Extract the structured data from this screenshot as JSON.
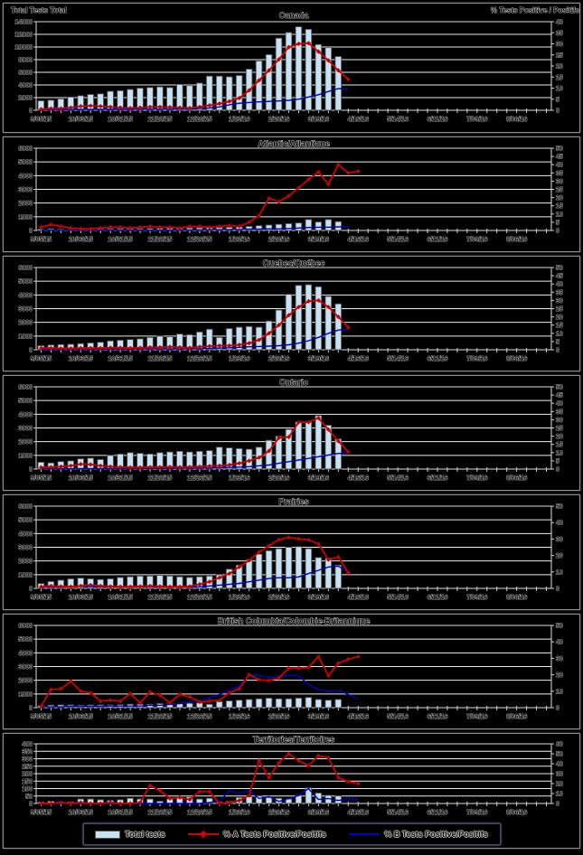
{
  "page": {
    "background": "#000000"
  },
  "header": {
    "left_axis_title": "Total Tests Total",
    "right_axis_title": "% Tests Positive / Positifs"
  },
  "colors": {
    "bar_fill": "#c9e2f3",
    "bar_stroke": "#4a4a4a",
    "series_a": "#cf0000",
    "series_b": "#0000c8",
    "gridline": "#ededed",
    "frame": "#dedede",
    "tick": "#cfcfcf"
  },
  "legend": {
    "items": [
      {
        "label": "Total tests",
        "type": "bar"
      },
      {
        "label": "% A Tests Positive/Positifs",
        "type": "line-diamond"
      },
      {
        "label": "% B Tests Positive/Positifs",
        "type": "line"
      }
    ]
  },
  "x_axis": {
    "labels": [
      "9/05/15",
      "10/03/15",
      "10/31/15",
      "11/28/15",
      "12/26/15",
      "1/23/16",
      "2/20/16",
      "3/19/16",
      "4/16/16",
      "5/14/16",
      "6/11/16",
      "7/09/16",
      "8/06/16"
    ],
    "weeks_total": 52,
    "label_every_weeks": 4
  },
  "chart_data": [
    {
      "type": "bar",
      "title": "Canada",
      "left_axis": {
        "min": 0,
        "max": 14000,
        "step": 2000
      },
      "right_axis": {
        "min": 0,
        "max": 40,
        "step": 5
      },
      "series": [
        {
          "name": "Total tests",
          "kind": "bar",
          "axis": "left",
          "values": [
            1500,
            1600,
            1800,
            2100,
            2300,
            2500,
            2600,
            3000,
            3100,
            3300,
            3500,
            3600,
            3700,
            3600,
            4100,
            3900,
            4300,
            5400,
            5400,
            5300,
            5500,
            6500,
            7800,
            8800,
            11400,
            12300,
            13200,
            12800,
            10400,
            9900,
            8500
          ]
        },
        {
          "name": "% A Tests Positive/Positifs",
          "kind": "line",
          "marker": "diamond",
          "axis": "right",
          "values": [
            0.5,
            0.8,
            0.8,
            1.2,
            1.8,
            2.0,
            1.8,
            1.5,
            1.2,
            1.0,
            1.2,
            1.5,
            1.5,
            1.4,
            1.2,
            1.0,
            1.5,
            2.2,
            3.0,
            4.0,
            5.5,
            9.0,
            13.5,
            18.0,
            23.0,
            28.5,
            30.0,
            30.3,
            26.5,
            22.5,
            18.0,
            14.0
          ]
        },
        {
          "name": "% B Tests Positive/Positifs",
          "kind": "line",
          "axis": "right",
          "values": [
            0.3,
            0.3,
            0.3,
            0.3,
            0.4,
            0.4,
            0.4,
            0.4,
            0.4,
            0.4,
            0.5,
            0.5,
            0.5,
            0.5,
            0.6,
            0.6,
            0.8,
            1.0,
            1.5,
            2.5,
            3.2,
            3.5,
            3.8,
            4.0,
            4.2,
            4.5,
            5.0,
            6.0,
            7.0,
            8.5,
            9.8,
            9.4
          ]
        }
      ]
    },
    {
      "type": "bar",
      "title": "Atlantic/Atlantique",
      "left_axis": {
        "min": 0,
        "max": 6000,
        "step": 1000
      },
      "right_axis": {
        "min": 0,
        "max": 50,
        "step": 5
      },
      "series": [
        {
          "name": "Total tests",
          "kind": "bar",
          "axis": "left",
          "values": [
            100,
            120,
            100,
            90,
            100,
            110,
            120,
            130,
            140,
            150,
            140,
            150,
            160,
            170,
            180,
            190,
            200,
            220,
            230,
            240,
            260,
            300,
            350,
            400,
            450,
            500,
            550,
            800,
            620,
            800,
            650
          ]
        },
        {
          "name": "% A Tests Positive/Positifs",
          "kind": "line",
          "marker": "diamond",
          "axis": "right",
          "values": [
            2,
            3.5,
            2.5,
            1.5,
            1,
            1,
            1.5,
            2,
            2,
            1.5,
            2,
            2.5,
            2,
            2,
            1.5,
            2.5,
            2.5,
            2,
            2.5,
            3,
            2.5,
            5,
            9,
            19.5,
            17.5,
            21,
            26,
            31,
            35.5,
            28,
            40,
            35,
            36
          ]
        },
        {
          "name": "% B Tests Positive/Positifs",
          "kind": "line",
          "axis": "right",
          "values": [
            0.2,
            0.2,
            0.2,
            0.2,
            0.2,
            0.2,
            0.2,
            0.3,
            0.3,
            0.3,
            0.3,
            0.3,
            0.3,
            0.3,
            0.4,
            0.4,
            0.4,
            0.5,
            0.5,
            0.6,
            0.6,
            0.8,
            0.8,
            1.0,
            1.0,
            1.2,
            1.5,
            1.8,
            2.0,
            2.0,
            2.2,
            2.4
          ]
        }
      ]
    },
    {
      "type": "bar",
      "title": "Quebec/Québec",
      "left_axis": {
        "min": 0,
        "max": 6000,
        "step": 1000
      },
      "right_axis": {
        "min": 0,
        "max": 50,
        "step": 5
      },
      "series": [
        {
          "name": "Total tests",
          "kind": "bar",
          "axis": "left",
          "values": [
            300,
            350,
            380,
            400,
            450,
            500,
            550,
            650,
            700,
            750,
            800,
            900,
            1000,
            950,
            1150,
            1100,
            1300,
            1500,
            900,
            1550,
            1650,
            1700,
            1650,
            2100,
            2900,
            4050,
            4700,
            4750,
            4600,
            3900,
            3350
          ]
        },
        {
          "name": "% A Tests Positive/Positifs",
          "kind": "line",
          "marker": "diamond",
          "axis": "right",
          "values": [
            1,
            1,
            0.8,
            0.8,
            1,
            1,
            1,
            1.2,
            1.2,
            1,
            1.2,
            1.5,
            1.5,
            1.8,
            1.5,
            1.2,
            1.8,
            2.2,
            2.5,
            2.5,
            3,
            4,
            6,
            10,
            15,
            21,
            26,
            29.5,
            30,
            26,
            20,
            13.5
          ]
        },
        {
          "name": "% B Tests Positive/Positifs",
          "kind": "line",
          "axis": "right",
          "values": [
            0.3,
            0.3,
            0.3,
            0.3,
            0.3,
            0.3,
            0.4,
            0.4,
            0.4,
            0.4,
            0.5,
            0.5,
            0.5,
            0.5,
            0.5,
            0.6,
            0.6,
            0.8,
            1,
            1.2,
            1.5,
            1.8,
            2,
            2.2,
            2.5,
            3,
            4,
            5.5,
            7.5,
            10,
            12,
            12.5
          ]
        }
      ]
    },
    {
      "type": "bar",
      "title": "Ontario",
      "left_axis": {
        "min": 0,
        "max": 6000,
        "step": 1000
      },
      "right_axis": {
        "min": 0,
        "max": 50,
        "step": 5
      },
      "series": [
        {
          "name": "Total tests",
          "kind": "bar",
          "axis": "left",
          "values": [
            500,
            450,
            550,
            600,
            750,
            800,
            700,
            1000,
            1100,
            1200,
            1150,
            1100,
            1200,
            1250,
            1300,
            1250,
            1300,
            1350,
            1600,
            1550,
            1500,
            1450,
            1600,
            2100,
            2400,
            2900,
            3450,
            3450,
            3900,
            3200,
            2200
          ]
        },
        {
          "name": "% A Tests Positive/Positifs",
          "kind": "line",
          "marker": "diamond",
          "axis": "right",
          "values": [
            1,
            1.2,
            1.5,
            2,
            3,
            2.8,
            2,
            1.5,
            1.2,
            1,
            1,
            1.2,
            1.2,
            1.3,
            1.2,
            1.3,
            1.5,
            1.8,
            2,
            2.5,
            3.5,
            5,
            7,
            11,
            19,
            19.5,
            28.5,
            28.5,
            31,
            24,
            17,
            10.5
          ]
        },
        {
          "name": "% B Tests Positive/Positifs",
          "kind": "line",
          "axis": "right",
          "values": [
            0.2,
            0.2,
            0.2,
            0.2,
            0.3,
            0.3,
            0.3,
            0.3,
            0.3,
            0.3,
            0.4,
            0.4,
            0.4,
            0.4,
            0.5,
            0.5,
            0.5,
            0.6,
            0.8,
            1,
            1.2,
            1.5,
            2,
            2.5,
            3.5,
            4.5,
            5.5,
            6.5,
            7.5,
            8.5,
            9.5,
            9.5
          ]
        }
      ]
    },
    {
      "type": "bar",
      "title": "Prairies",
      "left_axis": {
        "min": 0,
        "max": 6000,
        "step": 1000
      },
      "right_axis": {
        "min": 0,
        "max": 50,
        "step": 10
      },
      "series": [
        {
          "name": "Total tests",
          "kind": "bar",
          "axis": "left",
          "values": [
            350,
            500,
            600,
            700,
            750,
            700,
            650,
            700,
            800,
            850,
            900,
            900,
            950,
            900,
            850,
            800,
            850,
            900,
            1000,
            1400,
            1700,
            2100,
            2500,
            2750,
            2900,
            3000,
            3050,
            2900,
            2250,
            2200,
            1700
          ]
        },
        {
          "name": "% A Tests Positive/Positifs",
          "kind": "line",
          "marker": "diamond",
          "axis": "right",
          "values": [
            1,
            1.5,
            1.2,
            1,
            1.5,
            2,
            1.5,
            1.2,
            1,
            1,
            1.2,
            1.5,
            1.2,
            1,
            1,
            1.2,
            2.5,
            4,
            6.5,
            9,
            13,
            17,
            22,
            26,
            29.5,
            31,
            30,
            29.5,
            27,
            17.5,
            19,
            9.5
          ]
        },
        {
          "name": "% B Tests Positive/Positifs",
          "kind": "line",
          "axis": "right",
          "values": [
            0.8,
            0.8,
            0.8,
            1,
            1.2,
            1,
            1,
            1,
            1,
            1,
            1,
            1,
            1,
            0.8,
            0.8,
            0.8,
            1,
            1.5,
            2,
            2.5,
            3,
            4,
            5,
            6,
            6.5,
            6.5,
            7,
            9,
            11,
            13,
            13.5,
            10
          ]
        }
      ]
    },
    {
      "type": "bar",
      "title": "British Columbia/Colombie-Britannique",
      "left_axis": {
        "min": 0,
        "max": 6000,
        "step": 1000
      },
      "right_axis": {
        "min": 0,
        "max": 50,
        "step": 10
      },
      "series": [
        {
          "name": "Total tests",
          "kind": "bar",
          "axis": "left",
          "values": [
            150,
            180,
            200,
            200,
            180,
            200,
            200,
            200,
            220,
            250,
            250,
            250,
            300,
            280,
            300,
            320,
            350,
            250,
            450,
            500,
            550,
            600,
            650,
            700,
            650,
            650,
            700,
            750,
            600,
            550,
            600
          ]
        },
        {
          "name": "% A Tests Positive/Positifs",
          "kind": "line",
          "marker": "diamond",
          "axis": "right",
          "values": [
            1,
            11,
            11.5,
            16,
            10,
            9,
            4,
            4.5,
            4,
            8.5,
            3,
            9.5,
            7.5,
            3,
            8,
            6.5,
            3.5,
            4,
            4.5,
            9,
            11.5,
            20,
            17,
            16.5,
            18,
            24,
            24,
            24.5,
            31,
            19.5,
            27,
            29.5,
            31
          ]
        },
        {
          "name": "% B Tests Positive/Positifs",
          "kind": "line",
          "axis": "right",
          "values": [
            0.5,
            0.5,
            0.5,
            0.8,
            0.8,
            0.8,
            0.8,
            1,
            1,
            1,
            1,
            1.5,
            1.5,
            2,
            2.5,
            3.5,
            4.5,
            6,
            8,
            10.5,
            13,
            20,
            19.5,
            18.5,
            19,
            19.5,
            19.5,
            14,
            11,
            10,
            10.5,
            8,
            5.5
          ]
        }
      ]
    },
    {
      "type": "bar",
      "title": "Territories/Territoires",
      "left_axis": {
        "min": 0,
        "max": 400,
        "step": 50
      },
      "right_axis": {
        "min": 0,
        "max": 60,
        "step": 10
      },
      "series": [
        {
          "name": "Total tests",
          "kind": "bar",
          "axis": "left",
          "values": [
            10,
            15,
            10,
            10,
            30,
            30,
            25,
            20,
            25,
            35,
            30,
            30,
            15,
            30,
            40,
            45,
            30,
            35,
            10,
            15,
            40,
            45,
            50,
            40,
            35,
            30,
            55,
            105,
            70,
            55,
            50
          ]
        },
        {
          "name": "% A Tests Positive/Positifs",
          "kind": "line",
          "marker": "diamond",
          "axis": "right",
          "values": [
            0,
            0,
            1,
            0,
            1,
            0,
            0,
            1,
            0,
            0,
            1,
            18,
            13,
            5,
            6,
            4,
            12,
            12,
            0,
            1,
            3,
            8,
            43,
            26,
            41,
            50,
            43,
            38,
            48,
            46,
            26,
            22,
            20
          ]
        },
        {
          "name": "% B Tests Positive/Positifs",
          "kind": "line",
          "axis": "right",
          "values": [
            0,
            0,
            0,
            0,
            0,
            0,
            0,
            0,
            0,
            0,
            0,
            0,
            0,
            0,
            0,
            0,
            0,
            1,
            2,
            13,
            10,
            13,
            5,
            7,
            2,
            5,
            8,
            15,
            4,
            5,
            3,
            5,
            4
          ]
        }
      ]
    }
  ]
}
